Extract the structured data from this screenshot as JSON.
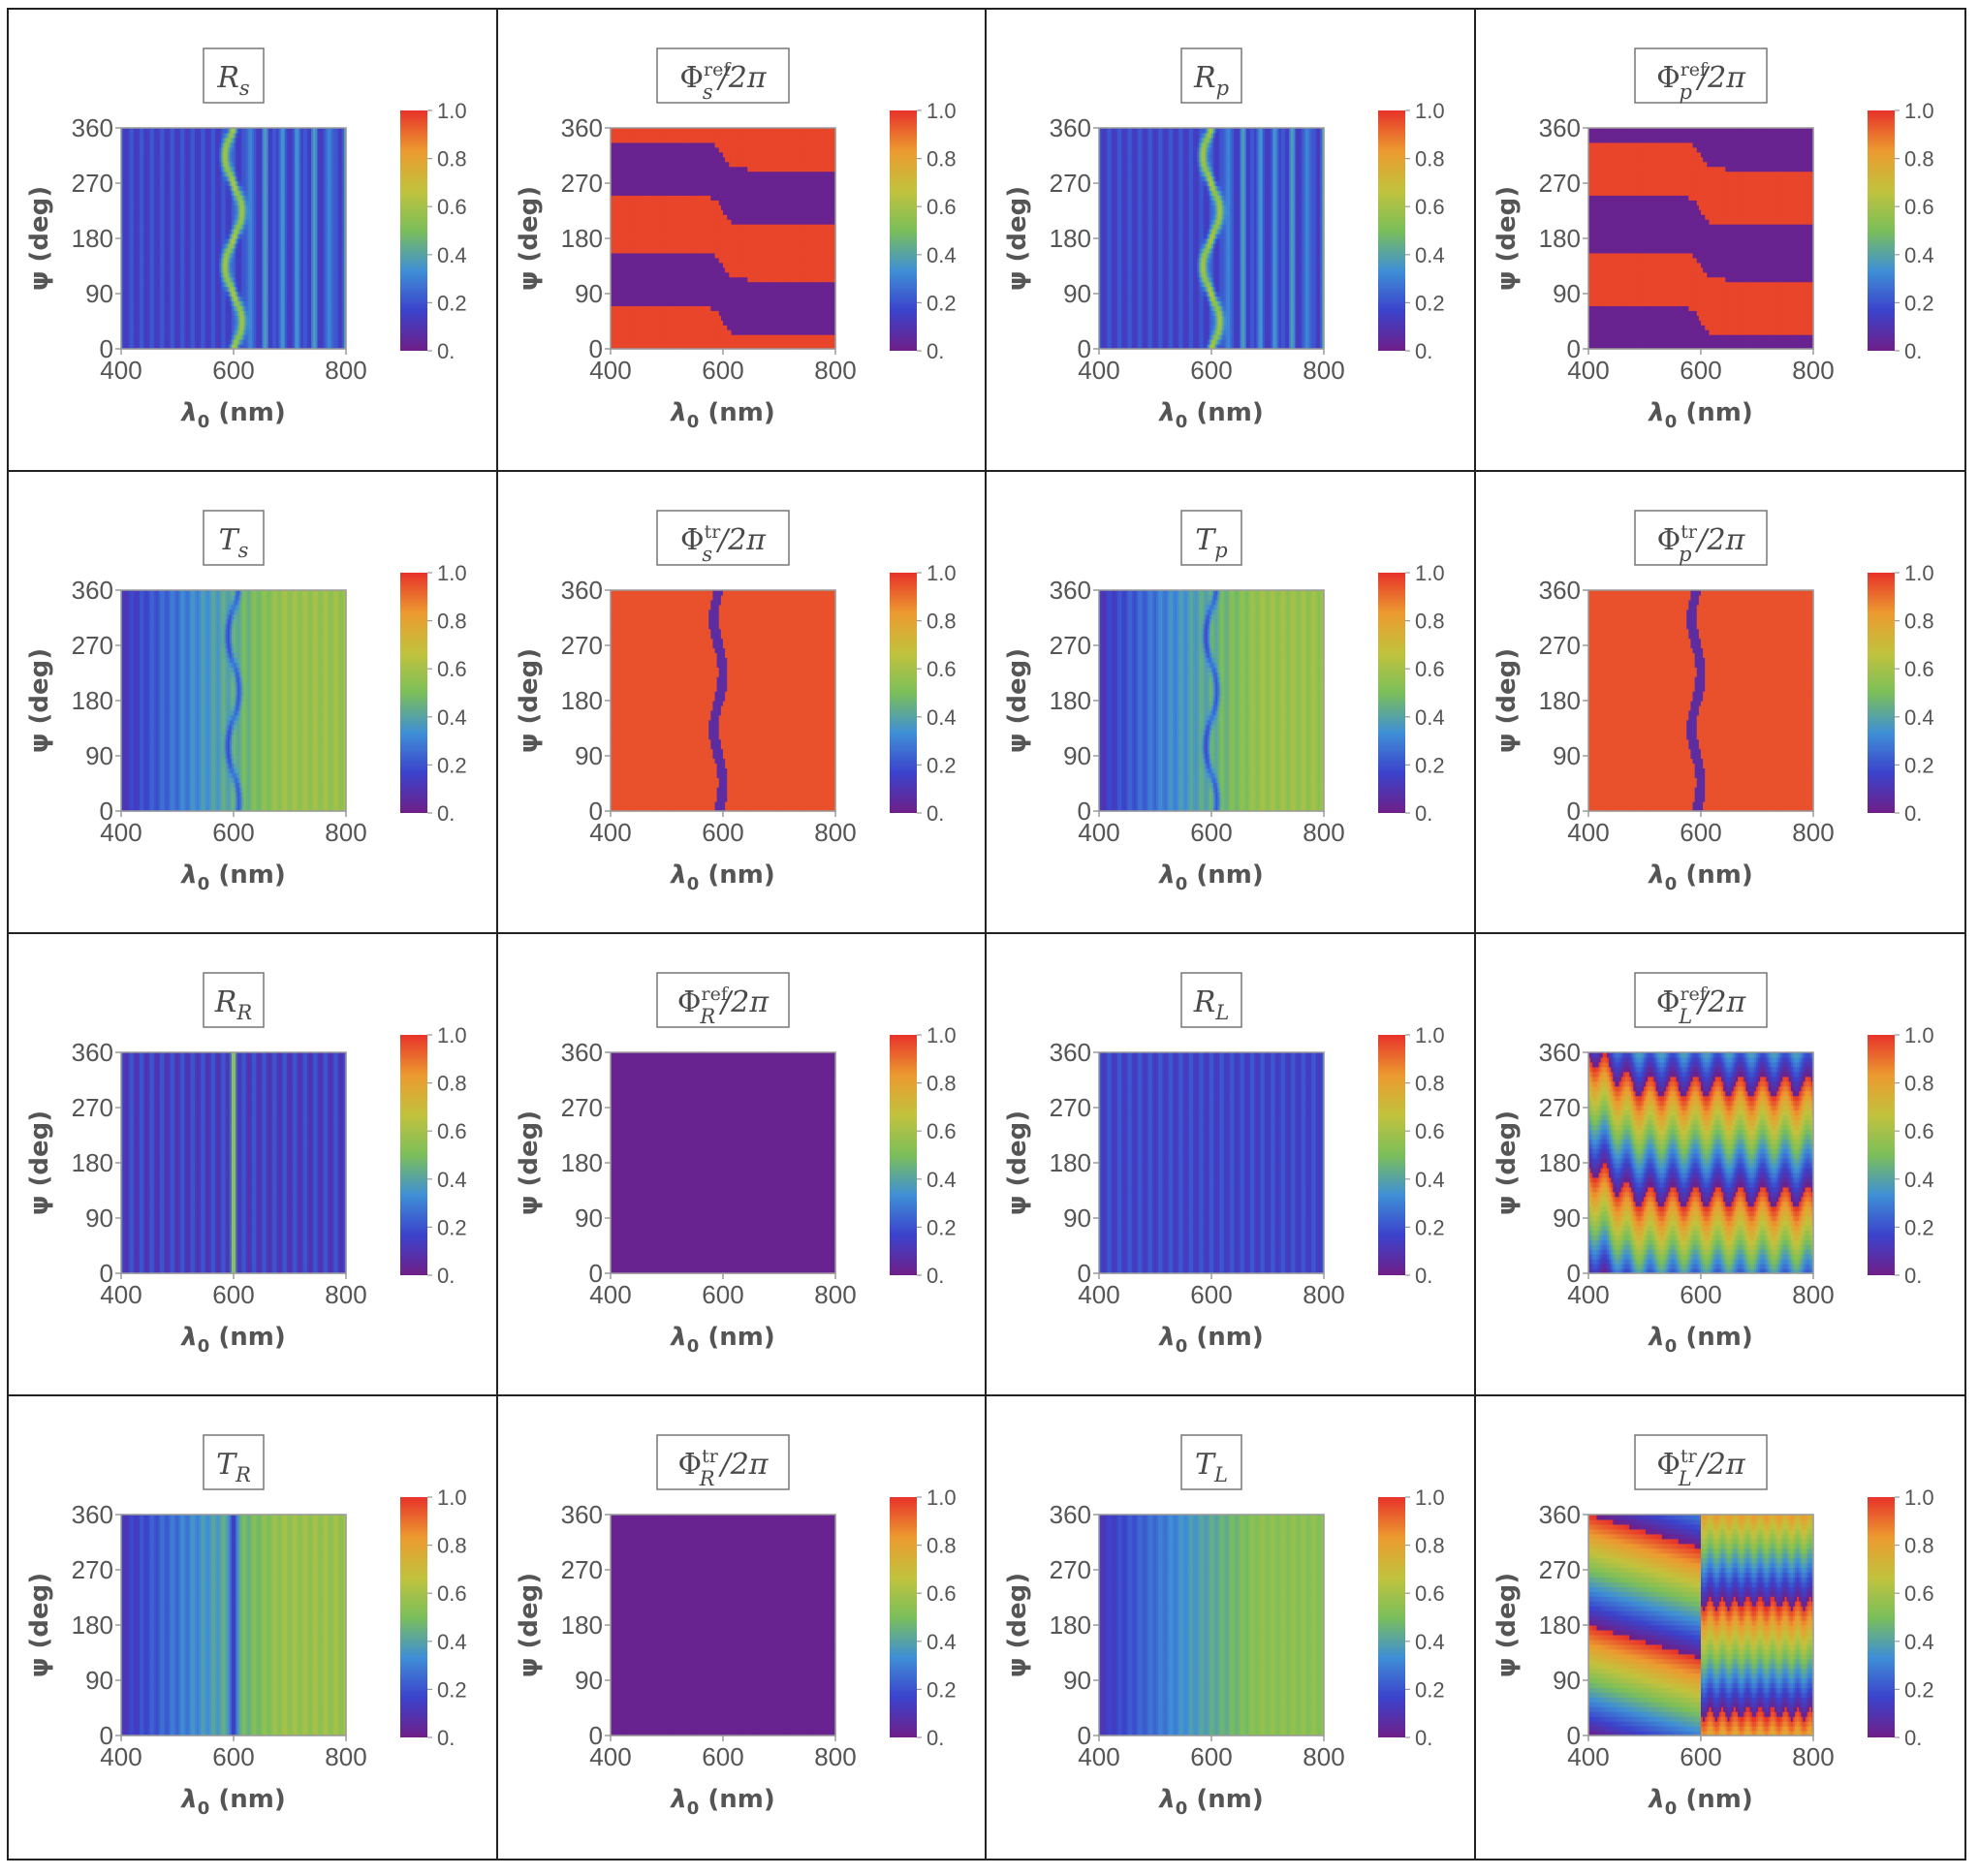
{
  "colors": {
    "frame": "#222222",
    "axis": "#9a9a9a",
    "text": "#555555",
    "colormap": [
      "#6f1f88",
      "#3b43cc",
      "#3f8fd6",
      "#7bbf5a",
      "#c2c23d",
      "#ec9a30",
      "#e7322a"
    ]
  },
  "chart_data": [
    {
      "type": "heatmap",
      "title_base": "R",
      "title_sub": "s",
      "title_sup": "",
      "title_suffix": "",
      "xlabel": "λ0 (nm)",
      "ylabel": "ψ (deg)",
      "xlim": [
        400,
        800
      ],
      "ylim": [
        0,
        360
      ],
      "xticks": [
        "400",
        "600",
        "800"
      ],
      "yticks": [
        "0",
        "90",
        "180",
        "270",
        "360"
      ],
      "colorbar": {
        "range": [
          0,
          1
        ],
        "ticks": [
          "0.",
          "0.2",
          "0.4",
          "0.6",
          "0.8",
          "1.0"
        ]
      },
      "pattern": "reflect_lin",
      "value_range_estimate": [
        0.1,
        0.6
      ]
    },
    {
      "type": "heatmap",
      "title_base": "Φ",
      "title_sub": "s",
      "title_sup": "ref",
      "title_suffix": "/2π",
      "xlabel": "λ0 (nm)",
      "ylabel": "ψ (deg)",
      "xlim": [
        400,
        800
      ],
      "ylim": [
        0,
        360
      ],
      "xticks": [
        "400",
        "600",
        "800"
      ],
      "yticks": [
        "0",
        "90",
        "180",
        "270",
        "360"
      ],
      "colorbar": {
        "range": [
          0,
          1
        ],
        "ticks": [
          "0.",
          "0.2",
          "0.4",
          "0.6",
          "0.8",
          "1.0"
        ]
      },
      "pattern": "phase_ref_s",
      "value_range_estimate": [
        0,
        1
      ]
    },
    {
      "type": "heatmap",
      "title_base": "R",
      "title_sub": "p",
      "title_sup": "",
      "title_suffix": "",
      "xlabel": "λ0 (nm)",
      "ylabel": "ψ (deg)",
      "xlim": [
        400,
        800
      ],
      "ylim": [
        0,
        360
      ],
      "xticks": [
        "400",
        "600",
        "800"
      ],
      "yticks": [
        "0",
        "90",
        "180",
        "270",
        "360"
      ],
      "colorbar": {
        "range": [
          0,
          1
        ],
        "ticks": [
          "0.",
          "0.2",
          "0.4",
          "0.6",
          "0.8",
          "1.0"
        ]
      },
      "pattern": "reflect_lin",
      "value_range_estimate": [
        0.1,
        0.6
      ]
    },
    {
      "type": "heatmap",
      "title_base": "Φ",
      "title_sub": "p",
      "title_sup": "ref",
      "title_suffix": "/2π",
      "xlabel": "λ0 (nm)",
      "ylabel": "ψ (deg)",
      "xlim": [
        400,
        800
      ],
      "ylim": [
        0,
        360
      ],
      "xticks": [
        "400",
        "600",
        "800"
      ],
      "yticks": [
        "0",
        "90",
        "180",
        "270",
        "360"
      ],
      "colorbar": {
        "range": [
          0,
          1
        ],
        "ticks": [
          "0.",
          "0.2",
          "0.4",
          "0.6",
          "0.8",
          "1.0"
        ]
      },
      "pattern": "phase_ref_p",
      "value_range_estimate": [
        0,
        1
      ]
    },
    {
      "type": "heatmap",
      "title_base": "T",
      "title_sub": "s",
      "title_sup": "",
      "title_suffix": "",
      "xlabel": "λ0 (nm)",
      "ylabel": "ψ (deg)",
      "xlim": [
        400,
        800
      ],
      "ylim": [
        0,
        360
      ],
      "xticks": [
        "400",
        "600",
        "800"
      ],
      "yticks": [
        "0",
        "90",
        "180",
        "270",
        "360"
      ],
      "colorbar": {
        "range": [
          0,
          1
        ],
        "ticks": [
          "0.",
          "0.2",
          "0.4",
          "0.6",
          "0.8",
          "1.0"
        ]
      },
      "pattern": "trans_lin",
      "value_range_estimate": [
        0.1,
        0.6
      ]
    },
    {
      "type": "heatmap",
      "title_base": "Φ",
      "title_sub": "s",
      "title_sup": "tr",
      "title_suffix": "/2π",
      "xlabel": "λ0 (nm)",
      "ylabel": "ψ (deg)",
      "xlim": [
        400,
        800
      ],
      "ylim": [
        0,
        360
      ],
      "xticks": [
        "400",
        "600",
        "800"
      ],
      "yticks": [
        "0",
        "90",
        "180",
        "270",
        "360"
      ],
      "colorbar": {
        "range": [
          0,
          1
        ],
        "ticks": [
          "0.",
          "0.2",
          "0.4",
          "0.6",
          "0.8",
          "1.0"
        ]
      },
      "pattern": "phase_tr_lin",
      "value_range_estimate": [
        0,
        1
      ]
    },
    {
      "type": "heatmap",
      "title_base": "T",
      "title_sub": "p",
      "title_sup": "",
      "title_suffix": "",
      "xlabel": "λ0 (nm)",
      "ylabel": "ψ (deg)",
      "xlim": [
        400,
        800
      ],
      "ylim": [
        0,
        360
      ],
      "xticks": [
        "400",
        "600",
        "800"
      ],
      "yticks": [
        "0",
        "90",
        "180",
        "270",
        "360"
      ],
      "colorbar": {
        "range": [
          0,
          1
        ],
        "ticks": [
          "0.",
          "0.2",
          "0.4",
          "0.6",
          "0.8",
          "1.0"
        ]
      },
      "pattern": "trans_lin",
      "value_range_estimate": [
        0.1,
        0.6
      ]
    },
    {
      "type": "heatmap",
      "title_base": "Φ",
      "title_sub": "p",
      "title_sup": "tr",
      "title_suffix": "/2π",
      "xlabel": "λ0 (nm)",
      "ylabel": "ψ (deg)",
      "xlim": [
        400,
        800
      ],
      "ylim": [
        0,
        360
      ],
      "xticks": [
        "400",
        "600",
        "800"
      ],
      "yticks": [
        "0",
        "90",
        "180",
        "270",
        "360"
      ],
      "colorbar": {
        "range": [
          0,
          1
        ],
        "ticks": [
          "0.",
          "0.2",
          "0.4",
          "0.6",
          "0.8",
          "1.0"
        ]
      },
      "pattern": "phase_tr_lin",
      "value_range_estimate": [
        0,
        1
      ]
    },
    {
      "type": "heatmap",
      "title_base": "R",
      "title_sub": "R",
      "title_sup": "",
      "title_suffix": "",
      "xlabel": "λ0 (nm)",
      "ylabel": "ψ (deg)",
      "xlim": [
        400,
        800
      ],
      "ylim": [
        0,
        360
      ],
      "xticks": [
        "400",
        "600",
        "800"
      ],
      "yticks": [
        "0",
        "90",
        "180",
        "270",
        "360"
      ],
      "colorbar": {
        "range": [
          0,
          1
        ],
        "ticks": [
          "0.",
          "0.2",
          "0.4",
          "0.6",
          "0.8",
          "1.0"
        ]
      },
      "pattern": "reflect_R",
      "value_range_estimate": [
        0.1,
        0.55
      ]
    },
    {
      "type": "heatmap",
      "title_base": "Φ",
      "title_sub": "R",
      "title_sup": "ref",
      "title_suffix": "/2π",
      "xlabel": "λ0 (nm)",
      "ylabel": "ψ (deg)",
      "xlim": [
        400,
        800
      ],
      "ylim": [
        0,
        360
      ],
      "xticks": [
        "400",
        "600",
        "800"
      ],
      "yticks": [
        "0",
        "90",
        "180",
        "270",
        "360"
      ],
      "colorbar": {
        "range": [
          0,
          1
        ],
        "ticks": [
          "0.",
          "0.2",
          "0.4",
          "0.6",
          "0.8",
          "1.0"
        ]
      },
      "pattern": "constant",
      "value_range_estimate": [
        0,
        0
      ]
    },
    {
      "type": "heatmap",
      "title_base": "R",
      "title_sub": "L",
      "title_sup": "",
      "title_suffix": "",
      "xlabel": "λ0 (nm)",
      "ylabel": "ψ (deg)",
      "xlim": [
        400,
        800
      ],
      "ylim": [
        0,
        360
      ],
      "xticks": [
        "400",
        "600",
        "800"
      ],
      "yticks": [
        "0",
        "90",
        "180",
        "270",
        "360"
      ],
      "colorbar": {
        "range": [
          0,
          1
        ],
        "ticks": [
          "0.",
          "0.2",
          "0.4",
          "0.6",
          "0.8",
          "1.0"
        ]
      },
      "pattern": "reflect_L",
      "value_range_estimate": [
        0.1,
        0.2
      ]
    },
    {
      "type": "heatmap",
      "title_base": "Φ",
      "title_sub": "L",
      "title_sup": "ref",
      "title_suffix": "/2π",
      "xlabel": "λ0 (nm)",
      "ylabel": "ψ (deg)",
      "xlim": [
        400,
        800
      ],
      "ylim": [
        0,
        360
      ],
      "xticks": [
        "400",
        "600",
        "800"
      ],
      "yticks": [
        "0",
        "90",
        "180",
        "270",
        "360"
      ],
      "colorbar": {
        "range": [
          0,
          1
        ],
        "ticks": [
          "0.",
          "0.2",
          "0.4",
          "0.6",
          "0.8",
          "1.0"
        ]
      },
      "pattern": "phase_ref_L",
      "value_range_estimate": [
        0,
        1
      ]
    },
    {
      "type": "heatmap",
      "title_base": "T",
      "title_sub": "R",
      "title_sup": "",
      "title_suffix": "",
      "xlabel": "λ0 (nm)",
      "ylabel": "ψ (deg)",
      "xlim": [
        400,
        800
      ],
      "ylim": [
        0,
        360
      ],
      "xticks": [
        "400",
        "600",
        "800"
      ],
      "yticks": [
        "0",
        "90",
        "180",
        "270",
        "360"
      ],
      "colorbar": {
        "range": [
          0,
          1
        ],
        "ticks": [
          "0.",
          "0.2",
          "0.4",
          "0.6",
          "0.8",
          "1.0"
        ]
      },
      "pattern": "trans_R",
      "value_range_estimate": [
        0.1,
        0.6
      ]
    },
    {
      "type": "heatmap",
      "title_base": "Φ",
      "title_sub": "R",
      "title_sup": "tr",
      "title_suffix": "/2π",
      "xlabel": "λ0 (nm)",
      "ylabel": "ψ (deg)",
      "xlim": [
        400,
        800
      ],
      "ylim": [
        0,
        360
      ],
      "xticks": [
        "400",
        "600",
        "800"
      ],
      "yticks": [
        "0",
        "90",
        "180",
        "270",
        "360"
      ],
      "colorbar": {
        "range": [
          0,
          1
        ],
        "ticks": [
          "0.",
          "0.2",
          "0.4",
          "0.6",
          "0.8",
          "1.0"
        ]
      },
      "pattern": "constant",
      "value_range_estimate": [
        0,
        0
      ]
    },
    {
      "type": "heatmap",
      "title_base": "T",
      "title_sub": "L",
      "title_sup": "",
      "title_suffix": "",
      "xlabel": "λ0 (nm)",
      "ylabel": "ψ (deg)",
      "xlim": [
        400,
        800
      ],
      "ylim": [
        0,
        360
      ],
      "xticks": [
        "400",
        "600",
        "800"
      ],
      "yticks": [
        "0",
        "90",
        "180",
        "270",
        "360"
      ],
      "colorbar": {
        "range": [
          0,
          1
        ],
        "ticks": [
          "0.",
          "0.2",
          "0.4",
          "0.6",
          "0.8",
          "1.0"
        ]
      },
      "pattern": "trans_L",
      "value_range_estimate": [
        0.1,
        0.55
      ]
    },
    {
      "type": "heatmap",
      "title_base": "Φ",
      "title_sub": "L",
      "title_sup": "tr",
      "title_suffix": "/2π",
      "xlabel": "λ0 (nm)",
      "ylabel": "ψ (deg)",
      "xlim": [
        400,
        800
      ],
      "ylim": [
        0,
        360
      ],
      "xticks": [
        "400",
        "600",
        "800"
      ],
      "yticks": [
        "0",
        "90",
        "180",
        "270",
        "360"
      ],
      "colorbar": {
        "range": [
          0,
          1
        ],
        "ticks": [
          "0.",
          "0.2",
          "0.4",
          "0.6",
          "0.8",
          "1.0"
        ]
      },
      "pattern": "phase_tr_L",
      "value_range_estimate": [
        0,
        1
      ]
    }
  ]
}
